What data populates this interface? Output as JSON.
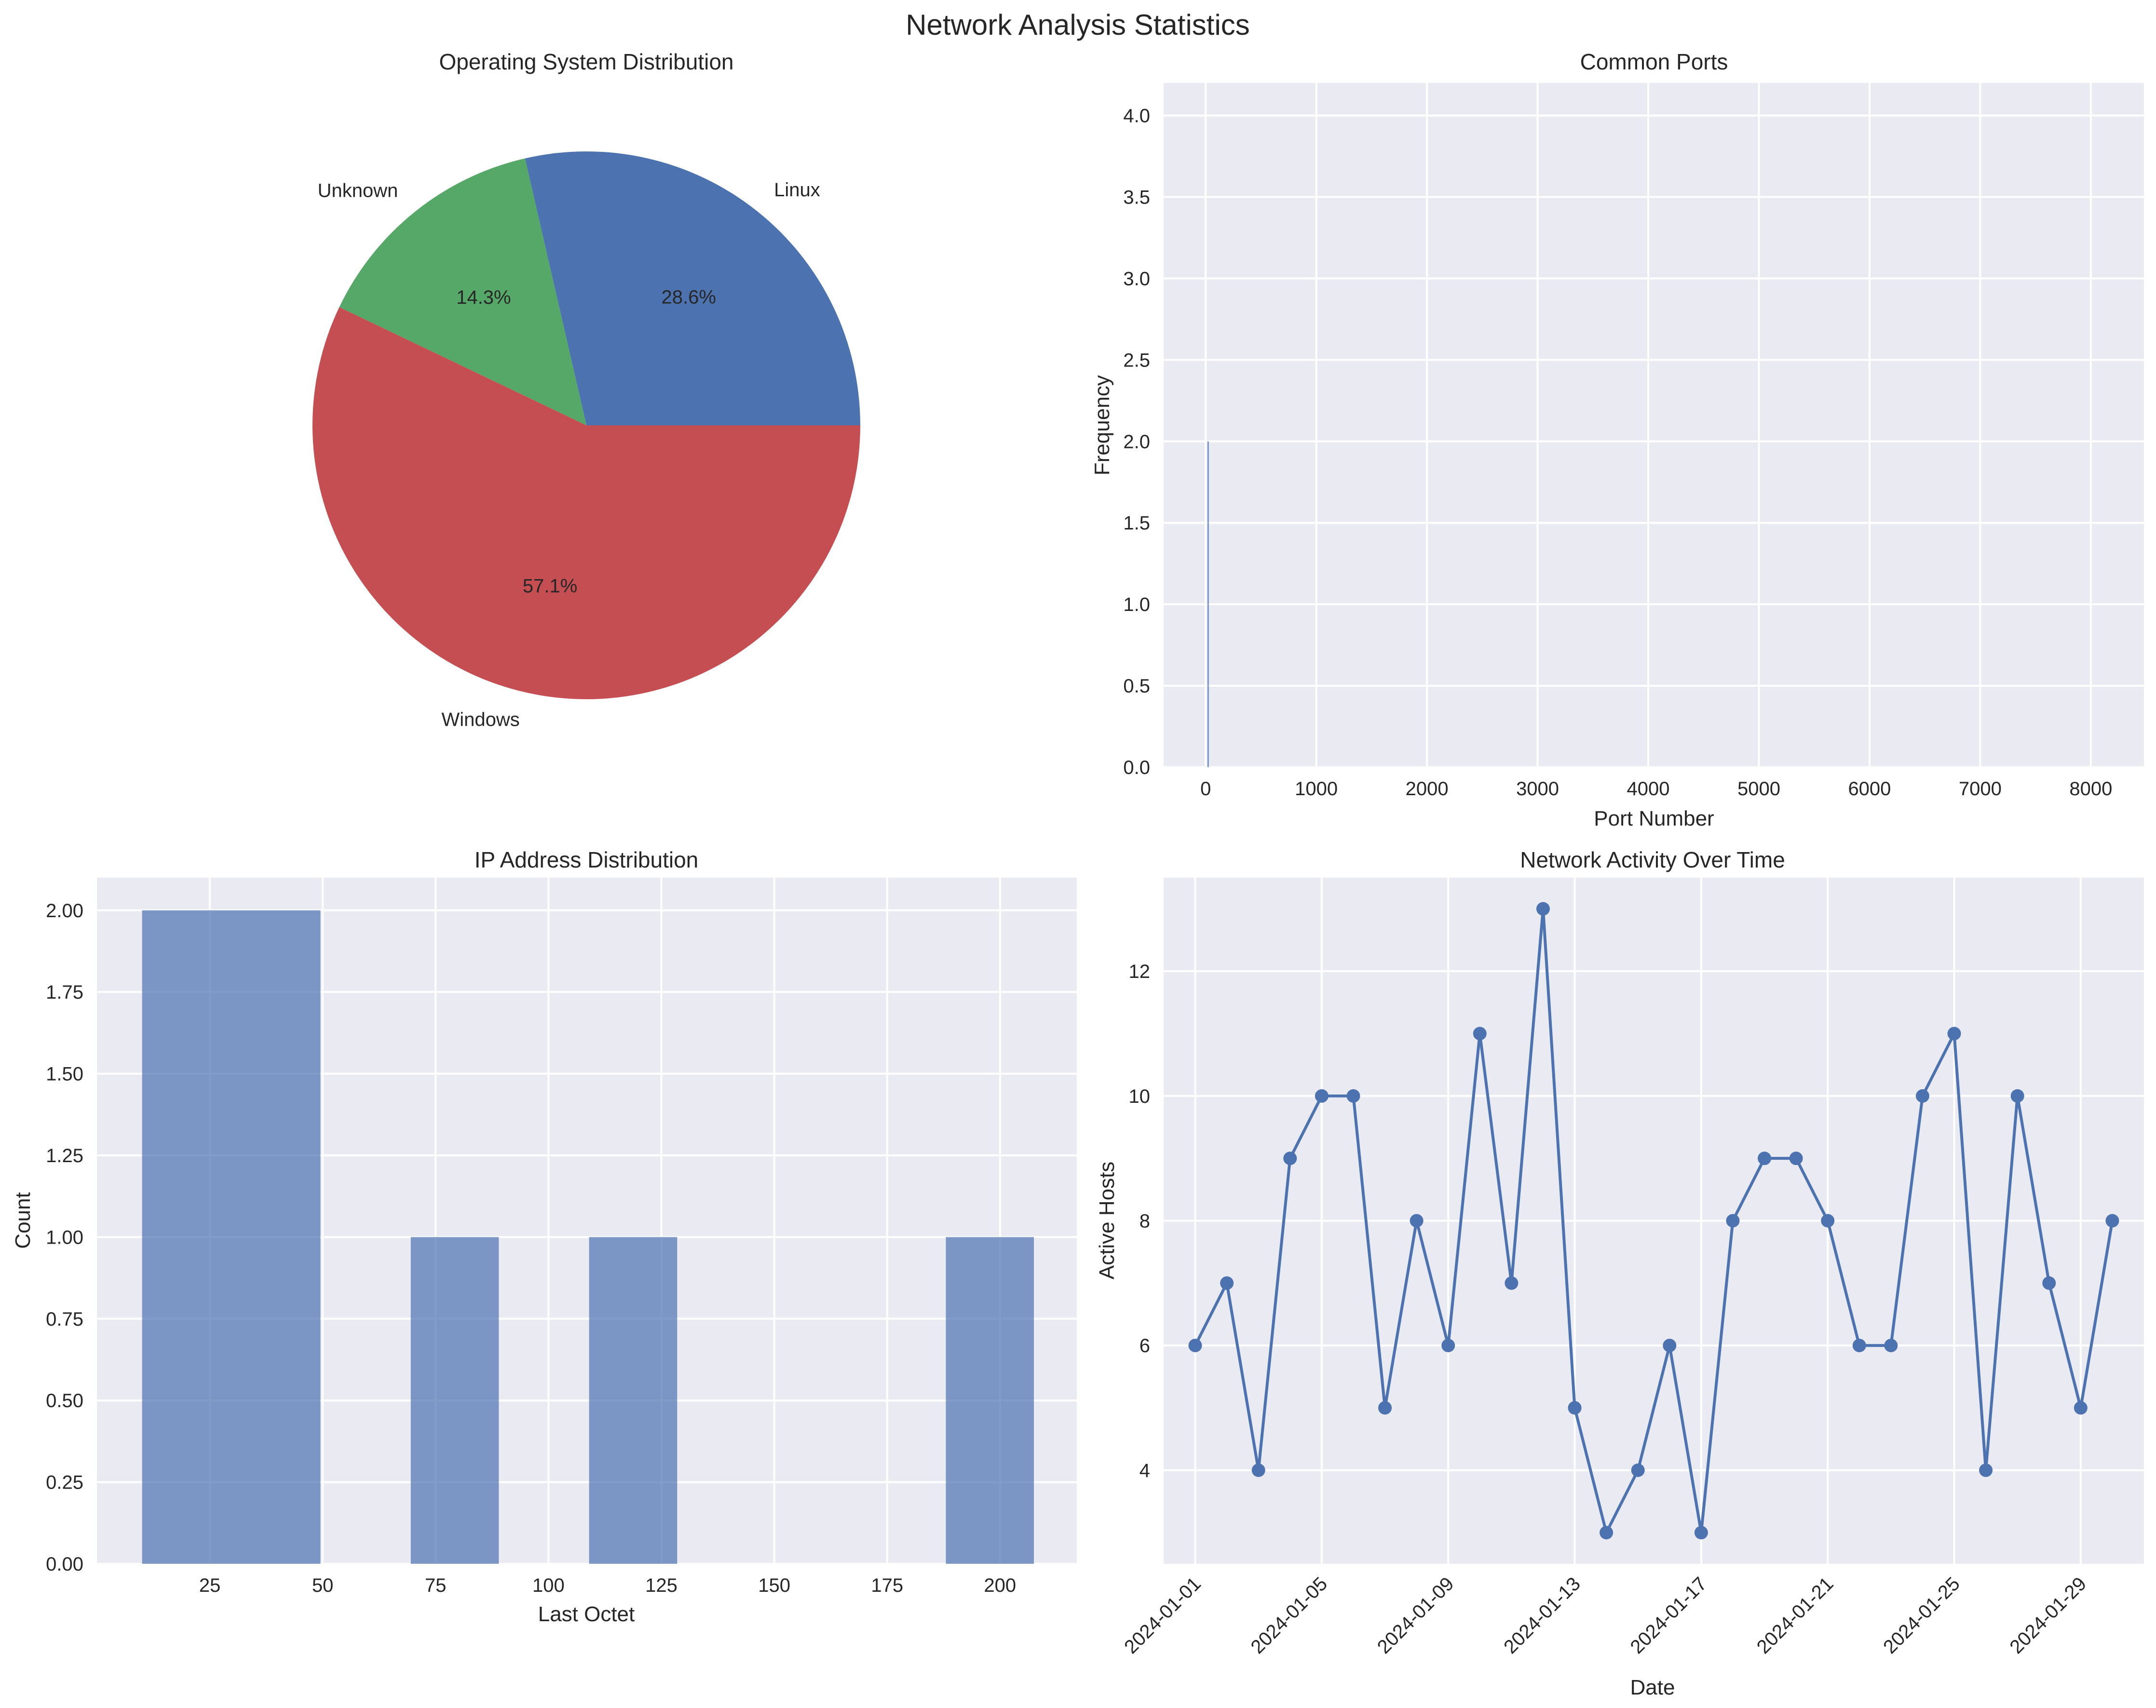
{
  "figure_title": "Network Analysis Statistics",
  "chart_data": [
    {
      "type": "pie",
      "title": "Operating System Distribution",
      "slices": [
        {
          "label": "Linux",
          "value": 28.6,
          "pct_label": "28.6%",
          "color": "#4c72b0"
        },
        {
          "label": "Unknown",
          "value": 14.3,
          "pct_label": "14.3%",
          "color": "#55a868"
        },
        {
          "label": "Windows",
          "value": 57.1,
          "pct_label": "57.1%",
          "color": "#c44e52"
        }
      ]
    },
    {
      "type": "bar",
      "title": "Common Ports",
      "xlabel": "Port Number",
      "ylabel": "Frequency",
      "xlim": [
        -380,
        8480
      ],
      "ylim": [
        0,
        4.2
      ],
      "xticks": [
        0,
        1000,
        2000,
        3000,
        4000,
        5000,
        6000,
        7000,
        8000
      ],
      "xtick_labels": [
        "0",
        "1000",
        "2000",
        "3000",
        "4000",
        "5000",
        "6000",
        "7000",
        "8000"
      ],
      "yticks": [
        0,
        0.5,
        1,
        1.5,
        2,
        2.5,
        3,
        3.5,
        4
      ],
      "ytick_labels": [
        "0.0",
        "0.5",
        "1.0",
        "1.5",
        "2.0",
        "2.5",
        "3.0",
        "3.5",
        "4.0"
      ],
      "bars": [
        {
          "x": 20,
          "width": 8,
          "value": 2
        }
      ],
      "color": "#4c72b0",
      "grid": true
    },
    {
      "type": "bar",
      "title": "IP Address Distribution",
      "xlabel": "Last Octet",
      "ylabel": "Count",
      "xlim": [
        0,
        217
      ],
      "ylim": [
        0,
        2.1
      ],
      "xticks": [
        25,
        50,
        75,
        100,
        125,
        150,
        175,
        200
      ],
      "xtick_labels": [
        "25",
        "50",
        "75",
        "100",
        "125",
        "150",
        "175",
        "200"
      ],
      "yticks": [
        0,
        0.25,
        0.5,
        0.75,
        1,
        1.25,
        1.5,
        1.75,
        2
      ],
      "ytick_labels": [
        "0.00",
        "0.25",
        "0.50",
        "0.75",
        "1.00",
        "1.25",
        "1.50",
        "1.75",
        "2.00"
      ],
      "bars": [
        {
          "x0": 10,
          "x1": 49.5,
          "value": 2
        },
        {
          "x0": 69.5,
          "x1": 89,
          "value": 1
        },
        {
          "x0": 109,
          "x1": 128.5,
          "value": 1
        },
        {
          "x0": 188,
          "x1": 207.5,
          "value": 1
        }
      ],
      "color": "#4c72b0",
      "grid": true
    },
    {
      "type": "line",
      "title": "Network Activity Over Time",
      "xlabel": "Date",
      "ylabel": "Active Hosts",
      "x": [
        "2024-01-01",
        "2024-01-02",
        "2024-01-03",
        "2024-01-04",
        "2024-01-05",
        "2024-01-06",
        "2024-01-07",
        "2024-01-08",
        "2024-01-09",
        "2024-01-10",
        "2024-01-11",
        "2024-01-12",
        "2024-01-13",
        "2024-01-14",
        "2024-01-15",
        "2024-01-16",
        "2024-01-17",
        "2024-01-18",
        "2024-01-19",
        "2024-01-20",
        "2024-01-21",
        "2024-01-22",
        "2024-01-23",
        "2024-01-24",
        "2024-01-25",
        "2024-01-26",
        "2024-01-27",
        "2024-01-28",
        "2024-01-29",
        "2024-01-30"
      ],
      "y": [
        6,
        7,
        4,
        9,
        10,
        10,
        5,
        8,
        6,
        11,
        7,
        13,
        5,
        3,
        4,
        6,
        3,
        8,
        9,
        9,
        8,
        6,
        6,
        10,
        11,
        4,
        10,
        7,
        5,
        8
      ],
      "xlim": [
        "2023-12-31",
        "2024-01-31"
      ],
      "ylim": [
        2.5,
        13.5
      ],
      "xticks": [
        "2024-01-01",
        "2024-01-05",
        "2024-01-09",
        "2024-01-13",
        "2024-01-17",
        "2024-01-21",
        "2024-01-25",
        "2024-01-29"
      ],
      "yticks": [
        4,
        6,
        8,
        10,
        12
      ],
      "ytick_labels": [
        "4",
        "6",
        "8",
        "10",
        "12"
      ],
      "color": "#4c72b0",
      "marker": "circle",
      "grid": true
    }
  ]
}
